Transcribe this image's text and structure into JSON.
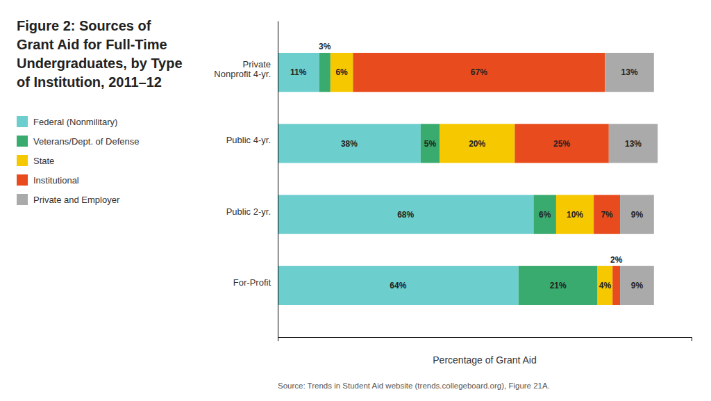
{
  "chart_data": {
    "type": "bar",
    "orientation": "horizontal",
    "stacked": true,
    "title": "Figure 2: Sources of Grant Aid for Full-Time Undergraduates, by Type of Institution, 2011–12",
    "xlabel": "Percentage of Grant Aid",
    "annotations": [
      "Source: Trends in Student Aid website (trends.collegeboard.org), Figure 21A."
    ],
    "categories": [
      "Private\nNonprofit 4-yr.",
      "Public 4-yr.",
      "Public 2-yr.",
      "For-Profit"
    ],
    "series": [
      {
        "name": "Federal (Nonmilitary)",
        "color": "#6dcece",
        "values": [
          11,
          38,
          68,
          64
        ],
        "value_labels": [
          "11%",
          "38%",
          "68%",
          "64%"
        ]
      },
      {
        "name": "Veterans/Dept. of Defense",
        "color": "#3aab6e",
        "values": [
          3,
          5,
          6,
          21
        ],
        "value_labels": [
          "3%",
          "5%",
          "6%",
          "21%"
        ]
      },
      {
        "name": "State",
        "color": "#f5c800",
        "values": [
          6,
          20,
          10,
          4
        ],
        "value_labels": [
          "6%",
          "20%",
          "10%",
          "4%"
        ]
      },
      {
        "name": "Institutional",
        "color": "#e84c1e",
        "values": [
          67,
          25,
          7,
          2
        ],
        "value_labels": [
          "67%",
          "25%",
          "7%",
          "2%"
        ]
      },
      {
        "name": "Private and Employer",
        "color": "#aaaaaa",
        "values": [
          13,
          13,
          9,
          9
        ],
        "value_labels": [
          "13%",
          "13%",
          "9%",
          "9%"
        ]
      }
    ],
    "xlim": [
      0,
      110
    ],
    "tick_labels": "y",
    "data_labels": true,
    "legend": "left"
  }
}
